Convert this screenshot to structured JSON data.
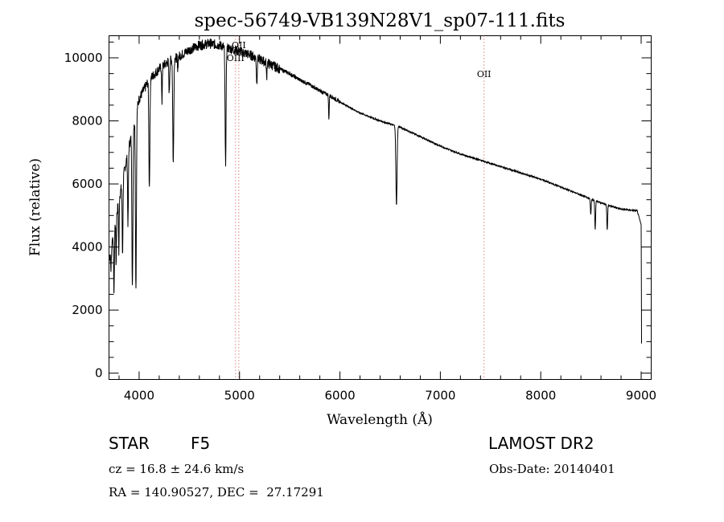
{
  "chart_data": {
    "type": "line",
    "title": "spec-56749-VB139N28V1_sp07-111.fits",
    "xlabel": "Wavelength (Å)",
    "ylabel": "Flux (relative)",
    "xlim": [
      3700,
      9100
    ],
    "ylim": [
      -200,
      10700
    ],
    "xticks": [
      4000,
      5000,
      6000,
      7000,
      8000,
      9000
    ],
    "yticks": [
      0,
      2000,
      4000,
      6000,
      8000,
      10000
    ],
    "grid": false,
    "line_color": "#000000",
    "annotation_color": "#cc4444",
    "continuum": [
      [
        3700,
        3600
      ],
      [
        3800,
        5500
      ],
      [
        3900,
        7200
      ],
      [
        4000,
        8700
      ],
      [
        4100,
        9300
      ],
      [
        4200,
        9650
      ],
      [
        4300,
        9900
      ],
      [
        4400,
        10050
      ],
      [
        4500,
        10250
      ],
      [
        4600,
        10400
      ],
      [
        4700,
        10450
      ],
      [
        4800,
        10400
      ],
      [
        4900,
        10300
      ],
      [
        5000,
        10200
      ],
      [
        5100,
        10100
      ],
      [
        5200,
        9950
      ],
      [
        5300,
        9800
      ],
      [
        5400,
        9650
      ],
      [
        5500,
        9500
      ],
      [
        5600,
        9300
      ],
      [
        5700,
        9150
      ],
      [
        5800,
        8950
      ],
      [
        5900,
        8800
      ],
      [
        6000,
        8600
      ],
      [
        6200,
        8250
      ],
      [
        6400,
        8000
      ],
      [
        6600,
        7800
      ],
      [
        6800,
        7500
      ],
      [
        7000,
        7200
      ],
      [
        7200,
        6950
      ],
      [
        7400,
        6750
      ],
      [
        7600,
        6550
      ],
      [
        7800,
        6350
      ],
      [
        8000,
        6150
      ],
      [
        8200,
        5900
      ],
      [
        8400,
        5650
      ],
      [
        8600,
        5400
      ],
      [
        8800,
        5200
      ],
      [
        8960,
        5150
      ],
      [
        9000,
        4700
      ],
      [
        9005,
        0
      ]
    ],
    "absorption_lines": [
      {
        "center": 3720,
        "depth": 700,
        "width": 4
      },
      {
        "center": 3750,
        "depth": 2000,
        "width": 4
      },
      {
        "center": 3771,
        "depth": 1500,
        "width": 3
      },
      {
        "center": 3798,
        "depth": 1700,
        "width": 3
      },
      {
        "center": 3835,
        "depth": 2300,
        "width": 4
      },
      {
        "center": 3889,
        "depth": 2300,
        "width": 4
      },
      {
        "center": 3933,
        "depth": 5000,
        "width": 5
      },
      {
        "center": 3968,
        "depth": 5500,
        "width": 5
      },
      {
        "center": 4102,
        "depth": 3400,
        "width": 5
      },
      {
        "center": 4227,
        "depth": 1200,
        "width": 3
      },
      {
        "center": 4300,
        "depth": 1000,
        "width": 4
      },
      {
        "center": 4340,
        "depth": 3300,
        "width": 5
      },
      {
        "center": 4384,
        "depth": 500,
        "width": 3
      },
      {
        "center": 4861,
        "depth": 3700,
        "width": 5
      },
      {
        "center": 5172,
        "depth": 800,
        "width": 4
      },
      {
        "center": 5270,
        "depth": 500,
        "width": 3
      },
      {
        "center": 5890,
        "depth": 800,
        "width": 3
      },
      {
        "center": 6563,
        "depth": 2500,
        "width": 6
      },
      {
        "center": 8498,
        "depth": 500,
        "width": 4
      },
      {
        "center": 8542,
        "depth": 900,
        "width": 4
      },
      {
        "center": 8662,
        "depth": 800,
        "width": 4
      }
    ],
    "annotations": [
      {
        "label": "OII",
        "wavelength": 4993
      },
      {
        "label": "OIII",
        "wavelength": 4960
      },
      {
        "label": "OII",
        "wavelength": 7435
      }
    ]
  },
  "info": {
    "class": "STAR",
    "subclass": "F5",
    "survey": "LAMOST DR2",
    "cz": "cz = 16.8 ± 24.6 km/s",
    "obs_date": "Obs-Date: 20140401",
    "coords": "RA = 140.90527, DEC =  27.17291"
  }
}
